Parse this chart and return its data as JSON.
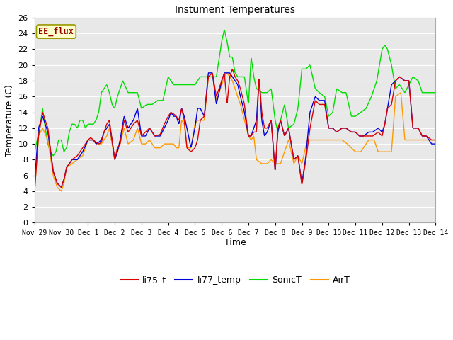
{
  "title": "Instument Temperatures",
  "xlabel": "Time",
  "ylabel": "Temperature (C)",
  "ylim": [
    0,
    26
  ],
  "yticks": [
    0,
    2,
    4,
    6,
    8,
    10,
    12,
    14,
    16,
    18,
    20,
    22,
    24,
    26
  ],
  "fig_bg_color": "#ffffff",
  "plot_bg_color": "#e8e8e8",
  "series_colors": {
    "li75_t": "#dd0000",
    "li77_temp": "#0000dd",
    "SonicT": "#00dd00",
    "AirT": "#ff9900"
  },
  "annotation_label": "EE_flux",
  "annotation_color": "#990000",
  "annotation_bg": "#ffffcc",
  "annotation_border": "#999900",
  "time_start": 0,
  "time_end": 15,
  "xtick_positions": [
    0,
    1,
    2,
    3,
    4,
    5,
    6,
    7,
    8,
    9,
    10,
    11,
    12,
    13,
    14,
    15
  ],
  "xtick_labels": [
    "Nov 29",
    "Nov 30",
    "Dec 1",
    "Dec 2",
    "Dec 3",
    "Dec 4",
    "Dec 5",
    "Dec 6",
    "Dec 7",
    "Dec 8",
    "Dec 9",
    "Dec 10",
    "Dec 11",
    "Dec 12",
    "Dec 13",
    "Dec 14"
  ],
  "li75_t_x": [
    0,
    0.15,
    0.3,
    0.5,
    0.7,
    0.85,
    1.0,
    1.1,
    1.2,
    1.4,
    1.6,
    1.8,
    2.0,
    2.1,
    2.2,
    2.3,
    2.4,
    2.5,
    2.6,
    2.7,
    2.8,
    2.9,
    3.0,
    3.1,
    3.2,
    3.35,
    3.5,
    3.7,
    3.85,
    4.0,
    4.15,
    4.3,
    4.5,
    4.7,
    4.85,
    5.0,
    5.1,
    5.2,
    5.3,
    5.4,
    5.5,
    5.6,
    5.7,
    5.85,
    6.0,
    6.1,
    6.2,
    6.35,
    6.5,
    6.65,
    6.8,
    7.0,
    7.1,
    7.2,
    7.3,
    7.4,
    7.5,
    7.6,
    7.7,
    7.85,
    8.0,
    8.1,
    8.2,
    8.3,
    8.4,
    8.5,
    8.6,
    8.7,
    8.85,
    9.0,
    9.1,
    9.2,
    9.35,
    9.5,
    9.7,
    9.85,
    10.0,
    10.15,
    10.3,
    10.5,
    10.65,
    10.85,
    11.0,
    11.15,
    11.3,
    11.5,
    11.65,
    11.85,
    12.0,
    12.15,
    12.3,
    12.5,
    12.65,
    12.85,
    13.0,
    13.1,
    13.2,
    13.35,
    13.5,
    13.65,
    13.85,
    14.0,
    14.15,
    14.35,
    14.5,
    14.65,
    14.85,
    15.0
  ],
  "li75_t_y": [
    3.8,
    11.0,
    14.0,
    12.0,
    6.5,
    5.0,
    4.5,
    5.5,
    7.0,
    8.0,
    8.5,
    9.5,
    10.5,
    10.8,
    10.5,
    10.2,
    10.0,
    10.2,
    11.5,
    12.5,
    13.0,
    10.5,
    8.0,
    9.5,
    10.0,
    13.0,
    11.5,
    12.5,
    13.0,
    11.0,
    11.5,
    12.0,
    11.0,
    11.2,
    12.5,
    13.5,
    14.0,
    13.8,
    13.5,
    13.0,
    14.5,
    13.0,
    9.5,
    9.0,
    9.5,
    10.5,
    13.0,
    13.5,
    18.5,
    19.0,
    16.0,
    18.0,
    19.0,
    15.0,
    18.5,
    19.5,
    18.5,
    18.0,
    17.0,
    15.0,
    11.0,
    11.0,
    11.5,
    11.5,
    18.5,
    14.0,
    12.0,
    12.0,
    13.0,
    6.5,
    12.0,
    13.0,
    11.0,
    12.0,
    8.0,
    8.5,
    4.8,
    8.0,
    12.0,
    15.5,
    15.0,
    15.0,
    12.0,
    12.0,
    11.5,
    12.0,
    12.0,
    11.5,
    11.5,
    11.0,
    11.0,
    11.0,
    11.0,
    11.5,
    11.0,
    12.5,
    14.5,
    15.0,
    18.0,
    18.5,
    18.0,
    18.0,
    12.0,
    12.0,
    11.0,
    11.0,
    10.5,
    10.5
  ],
  "li77_temp_x": [
    0,
    0.15,
    0.3,
    0.5,
    0.7,
    0.85,
    1.0,
    1.1,
    1.2,
    1.4,
    1.6,
    1.8,
    2.0,
    2.1,
    2.2,
    2.3,
    2.4,
    2.5,
    2.6,
    2.7,
    2.8,
    2.9,
    3.0,
    3.1,
    3.2,
    3.35,
    3.5,
    3.7,
    3.85,
    4.0,
    4.15,
    4.3,
    4.5,
    4.7,
    4.85,
    5.0,
    5.1,
    5.2,
    5.3,
    5.4,
    5.5,
    5.6,
    5.7,
    5.85,
    6.0,
    6.1,
    6.2,
    6.35,
    6.5,
    6.65,
    6.8,
    7.0,
    7.1,
    7.2,
    7.3,
    7.4,
    7.5,
    7.6,
    7.7,
    7.85,
    8.0,
    8.1,
    8.2,
    8.3,
    8.4,
    8.5,
    8.6,
    8.7,
    8.85,
    9.0,
    9.1,
    9.2,
    9.35,
    9.5,
    9.7,
    9.85,
    10.0,
    10.15,
    10.3,
    10.5,
    10.65,
    10.85,
    11.0,
    11.15,
    11.3,
    11.5,
    11.65,
    11.85,
    12.0,
    12.15,
    12.3,
    12.5,
    12.65,
    12.85,
    13.0,
    13.1,
    13.2,
    13.35,
    13.5,
    13.65,
    13.85,
    14.0,
    14.15,
    14.35,
    14.5,
    14.65,
    14.85,
    15.0
  ],
  "li77_temp_y": [
    5.0,
    12.0,
    13.5,
    11.5,
    6.5,
    5.0,
    4.5,
    5.5,
    7.0,
    8.0,
    8.0,
    9.0,
    10.5,
    10.5,
    10.5,
    10.0,
    10.2,
    10.5,
    11.5,
    12.0,
    12.5,
    10.5,
    8.0,
    9.0,
    10.5,
    13.5,
    12.0,
    13.0,
    14.5,
    11.0,
    11.0,
    12.0,
    11.0,
    11.0,
    12.0,
    13.0,
    14.0,
    13.5,
    13.5,
    12.5,
    14.5,
    13.5,
    12.0,
    9.5,
    12.0,
    14.5,
    14.5,
    13.5,
    19.0,
    19.0,
    15.0,
    18.0,
    19.0,
    19.0,
    19.0,
    18.5,
    18.0,
    17.5,
    16.0,
    14.0,
    11.0,
    11.0,
    12.0,
    13.0,
    18.5,
    13.0,
    11.0,
    11.5,
    13.0,
    6.5,
    11.5,
    13.0,
    11.0,
    12.0,
    8.0,
    8.5,
    5.0,
    8.5,
    14.0,
    16.0,
    15.5,
    15.5,
    12.0,
    12.0,
    11.5,
    12.0,
    12.0,
    11.5,
    11.5,
    11.0,
    11.0,
    11.5,
    11.5,
    12.0,
    11.5,
    12.5,
    14.5,
    17.5,
    18.0,
    18.5,
    18.0,
    18.0,
    12.0,
    12.0,
    11.0,
    11.0,
    10.0,
    10.0
  ],
  "sonic_x": [
    0,
    0.1,
    0.2,
    0.3,
    0.4,
    0.5,
    0.6,
    0.7,
    0.8,
    0.9,
    1.0,
    1.1,
    1.2,
    1.3,
    1.4,
    1.5,
    1.6,
    1.7,
    1.8,
    1.9,
    2.0,
    2.1,
    2.2,
    2.3,
    2.4,
    2.5,
    2.6,
    2.7,
    2.8,
    2.9,
    3.0,
    3.1,
    3.2,
    3.3,
    3.5,
    3.7,
    3.85,
    4.0,
    4.2,
    4.4,
    4.6,
    4.8,
    5.0,
    5.2,
    5.4,
    5.6,
    5.8,
    6.0,
    6.2,
    6.4,
    6.6,
    6.8,
    7.0,
    7.1,
    7.2,
    7.3,
    7.4,
    7.5,
    7.6,
    7.7,
    7.85,
    8.0,
    8.1,
    8.2,
    8.3,
    8.5,
    8.7,
    8.85,
    9.0,
    9.1,
    9.2,
    9.35,
    9.5,
    9.7,
    9.85,
    10.0,
    10.15,
    10.3,
    10.5,
    10.65,
    10.85,
    11.0,
    11.15,
    11.3,
    11.5,
    11.65,
    11.85,
    12.0,
    12.2,
    12.4,
    12.6,
    12.8,
    13.0,
    13.1,
    13.2,
    13.35,
    13.5,
    13.65,
    13.85,
    14.0,
    14.15,
    14.35,
    14.5,
    14.65,
    14.85,
    15.0
  ],
  "sonic_y": [
    9.0,
    10.5,
    12.0,
    14.5,
    12.0,
    10.0,
    9.0,
    8.5,
    9.0,
    10.5,
    10.5,
    9.0,
    9.5,
    11.5,
    12.5,
    12.5,
    12.0,
    13.0,
    13.0,
    12.0,
    12.5,
    12.5,
    12.5,
    13.0,
    14.0,
    16.5,
    17.0,
    17.5,
    16.5,
    15.0,
    14.5,
    16.0,
    17.0,
    18.0,
    16.5,
    16.5,
    16.5,
    14.5,
    15.0,
    15.0,
    15.5,
    15.5,
    18.5,
    17.5,
    17.5,
    17.5,
    17.5,
    17.5,
    18.5,
    18.5,
    18.5,
    18.5,
    23.0,
    24.5,
    23.0,
    21.0,
    21.0,
    19.0,
    18.5,
    18.5,
    18.5,
    15.0,
    21.0,
    18.5,
    17.0,
    16.5,
    16.5,
    17.0,
    13.0,
    11.5,
    13.0,
    15.0,
    12.0,
    12.5,
    14.5,
    19.5,
    19.5,
    20.0,
    17.0,
    16.5,
    16.0,
    13.5,
    14.0,
    17.0,
    16.5,
    16.5,
    13.5,
    13.5,
    14.0,
    14.5,
    16.0,
    18.0,
    22.0,
    22.5,
    22.0,
    20.0,
    17.0,
    17.5,
    16.5,
    17.5,
    18.5,
    18.0,
    16.5,
    16.5,
    16.5,
    16.5
  ],
  "airt_x": [
    0,
    0.15,
    0.3,
    0.5,
    0.7,
    0.85,
    1.0,
    1.1,
    1.2,
    1.4,
    1.6,
    1.8,
    2.0,
    2.1,
    2.2,
    2.3,
    2.4,
    2.5,
    2.6,
    2.7,
    2.8,
    2.9,
    3.0,
    3.1,
    3.2,
    3.35,
    3.5,
    3.7,
    3.85,
    4.0,
    4.15,
    4.3,
    4.5,
    4.7,
    4.85,
    5.0,
    5.1,
    5.2,
    5.3,
    5.4,
    5.5,
    5.6,
    5.7,
    5.85,
    6.0,
    6.1,
    6.2,
    6.35,
    6.5,
    6.65,
    6.8,
    7.0,
    7.1,
    7.2,
    7.3,
    7.4,
    7.5,
    7.6,
    7.7,
    7.85,
    8.0,
    8.1,
    8.2,
    8.3,
    8.5,
    8.7,
    8.85,
    9.0,
    9.2,
    9.5,
    9.7,
    9.85,
    10.0,
    10.2,
    10.5,
    10.7,
    10.85,
    11.0,
    11.2,
    11.5,
    11.7,
    11.85,
    12.0,
    12.2,
    12.5,
    12.7,
    12.85,
    13.0,
    13.2,
    13.35,
    13.5,
    13.7,
    13.85,
    14.0,
    14.2,
    14.5,
    14.7,
    14.85,
    15.0
  ],
  "airt_y": [
    4.0,
    11.0,
    12.0,
    10.5,
    6.0,
    4.5,
    4.0,
    5.0,
    7.0,
    7.5,
    8.0,
    8.5,
    10.5,
    10.5,
    10.5,
    10.0,
    10.0,
    10.0,
    10.5,
    11.0,
    12.0,
    10.0,
    8.0,
    9.0,
    10.0,
    12.0,
    10.0,
    10.5,
    12.0,
    10.0,
    10.0,
    10.5,
    9.5,
    9.5,
    10.0,
    10.0,
    10.0,
    10.0,
    9.5,
    9.5,
    13.0,
    12.5,
    9.5,
    9.5,
    12.5,
    13.0,
    13.0,
    13.0,
    18.5,
    19.0,
    15.5,
    17.5,
    18.5,
    19.0,
    18.5,
    18.0,
    17.0,
    16.0,
    15.0,
    13.0,
    11.0,
    10.5,
    11.0,
    8.0,
    7.5,
    7.5,
    8.0,
    7.5,
    7.5,
    10.5,
    7.5,
    8.5,
    7.5,
    10.5,
    10.5,
    10.5,
    10.5,
    10.5,
    10.5,
    10.5,
    10.0,
    9.5,
    9.0,
    9.0,
    10.5,
    10.5,
    9.0,
    9.0,
    9.0,
    9.0,
    16.0,
    16.5,
    10.5,
    10.5,
    10.5,
    10.5,
    10.5,
    10.5,
    10.5
  ]
}
